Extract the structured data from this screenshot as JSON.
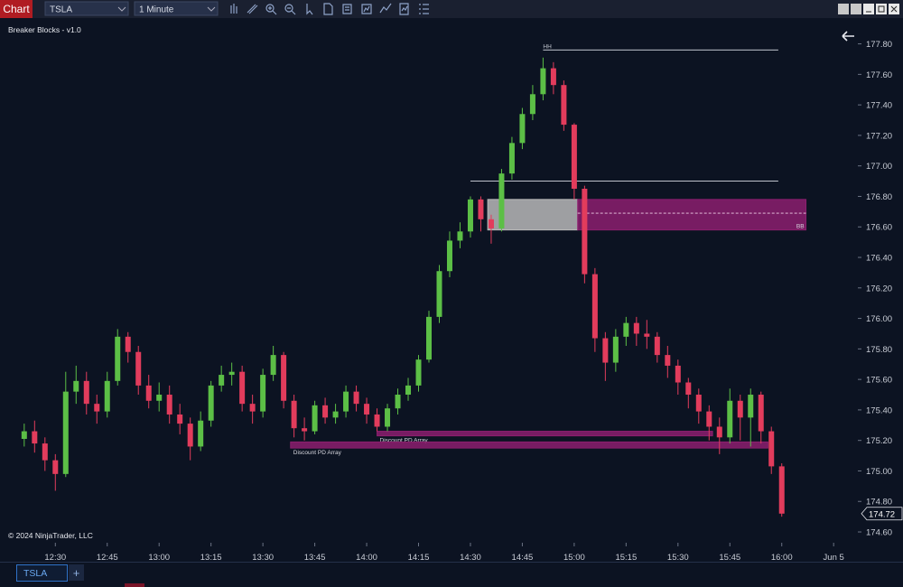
{
  "ui": {
    "tab": "Chart",
    "instrument": "TSLA",
    "interval": "1 Minute",
    "bottom_tab": "TSLA",
    "add_tab": "+"
  },
  "chart_data": {
    "type": "candlestick",
    "title": "Breaker Blocks - v1.0",
    "watermark": "© 2024 NinjaTrader, LLC",
    "up_color": "#5cbf46",
    "down_color": "#e23c5c",
    "xlim": [
      "12:14",
      "16:22"
    ],
    "ylim": [
      174.535,
      177.91
    ],
    "xticks": [
      "12:30",
      "12:45",
      "13:00",
      "13:15",
      "13:30",
      "13:45",
      "14:00",
      "14:15",
      "14:30",
      "14:45",
      "15:00",
      "15:15",
      "15:30",
      "15:45",
      "16:00",
      {
        "value": "16:15",
        "label": "Jun 5"
      }
    ],
    "yticks": [
      {
        "value": 174.6,
        "label": "174.60"
      },
      {
        "value": 174.8,
        "label": "174.80"
      },
      {
        "value": 175,
        "label": "175.00"
      },
      {
        "value": 175.2,
        "label": "175.20"
      },
      {
        "value": 175.4,
        "label": "175.40"
      },
      {
        "value": 175.6,
        "label": "175.60"
      },
      {
        "value": 175.8,
        "label": "175.80"
      },
      {
        "value": 176,
        "label": "176.00"
      },
      {
        "value": 176.2,
        "label": "176.20"
      },
      {
        "value": 176.4,
        "label": "176.40"
      },
      {
        "value": 176.6,
        "label": "176.60"
      },
      {
        "value": 176.8,
        "label": "176.80"
      },
      {
        "value": 177,
        "label": "177.00"
      },
      {
        "value": 177.2,
        "label": "177.20"
      },
      {
        "value": 177.4,
        "label": "177.40"
      },
      {
        "value": 177.6,
        "label": "177.60"
      },
      {
        "value": 177.8,
        "label": "177.80"
      }
    ],
    "grid": false,
    "x": [
      "12:21",
      "12:24",
      "12:27",
      "12:30",
      "12:33",
      "12:36",
      "12:39",
      "12:42",
      "12:45",
      "12:48",
      "12:51",
      "12:54",
      "12:57",
      "13:00",
      "13:03",
      "13:06",
      "13:09",
      "13:12",
      "13:15",
      "13:18",
      "13:21",
      "13:24",
      "13:27",
      "13:30",
      "13:33",
      "13:36",
      "13:39",
      "13:42",
      "13:45",
      "13:48",
      "13:51",
      "13:54",
      "13:57",
      "14:00",
      "14:03",
      "14:06",
      "14:09",
      "14:12",
      "14:15",
      "14:18",
      "14:21",
      "14:24",
      "14:27",
      "14:30",
      "14:33",
      "14:36",
      "14:39",
      "14:42",
      "14:45",
      "14:48",
      "14:51",
      "14:54",
      "14:57",
      "15:00",
      "15:03",
      "15:06",
      "15:09",
      "15:12",
      "15:15",
      "15:18",
      "15:21",
      "15:24",
      "15:27",
      "15:30",
      "15:33",
      "15:36",
      "15:39",
      "15:42",
      "15:45",
      "15:48",
      "15:51",
      "15:54",
      "15:57",
      "16:00"
    ],
    "open": [
      175.21,
      175.26,
      175.18,
      175.07,
      174.98,
      175.52,
      175.59,
      175.44,
      175.39,
      175.59,
      175.88,
      175.78,
      175.56,
      175.46,
      175.5,
      175.37,
      175.31,
      175.16,
      175.33,
      175.56,
      175.63,
      175.65,
      175.44,
      175.39,
      175.63,
      175.76,
      175.46,
      175.28,
      175.26,
      175.43,
      175.35,
      175.39,
      175.52,
      175.44,
      175.37,
      175.29,
      175.41,
      175.5,
      175.56,
      175.73,
      176.01,
      176.31,
      176.51,
      176.57,
      176.78,
      176.65,
      176.59,
      176.95,
      177.15,
      177.34,
      177.47,
      177.64,
      177.53,
      177.27,
      176.85,
      176.29,
      175.87,
      175.71,
      175.88,
      175.97,
      175.9,
      175.88,
      175.76,
      175.69,
      175.58,
      175.5,
      175.39,
      175.29,
      175.22,
      175.46,
      175.35,
      175.5,
      175.26,
      175.03
    ],
    "high": [
      175.31,
      175.33,
      175.22,
      175.11,
      175.65,
      175.69,
      175.65,
      175.5,
      175.65,
      175.93,
      175.91,
      175.82,
      175.63,
      175.58,
      175.56,
      175.44,
      175.35,
      175.39,
      175.59,
      175.69,
      175.71,
      175.69,
      175.5,
      175.67,
      175.82,
      175.78,
      175.5,
      175.35,
      175.46,
      175.48,
      175.44,
      175.56,
      175.56,
      175.48,
      175.41,
      175.44,
      175.54,
      175.61,
      175.76,
      176.05,
      176.35,
      176.57,
      176.63,
      176.8,
      176.8,
      176.68,
      176.98,
      177.19,
      177.38,
      177.53,
      177.71,
      177.68,
      177.56,
      177.28,
      176.87,
      176.33,
      175.91,
      175.93,
      176.01,
      176.01,
      175.99,
      175.91,
      175.82,
      175.73,
      175.61,
      175.54,
      175.43,
      175.35,
      175.54,
      175.5,
      175.54,
      175.52,
      175.29,
      175.05
    ],
    "low": [
      175.16,
      175.12,
      175.0,
      174.87,
      174.96,
      175.44,
      175.37,
      175.31,
      175.35,
      175.56,
      175.71,
      175.5,
      175.41,
      175.39,
      175.31,
      175.24,
      175.07,
      175.13,
      175.29,
      175.52,
      175.56,
      175.39,
      175.31,
      175.35,
      175.59,
      175.41,
      175.22,
      175.2,
      175.24,
      175.31,
      175.31,
      175.35,
      175.39,
      175.31,
      175.26,
      175.26,
      175.37,
      175.46,
      175.52,
      175.71,
      175.97,
      176.27,
      176.46,
      176.53,
      176.57,
      176.49,
      176.57,
      176.91,
      177.11,
      177.3,
      177.43,
      177.47,
      177.23,
      176.78,
      176.23,
      175.78,
      175.59,
      175.65,
      175.82,
      175.82,
      175.8,
      175.71,
      175.61,
      175.5,
      175.41,
      175.31,
      175.2,
      175.11,
      175.18,
      175.2,
      175.16,
      175.18,
      174.98,
      174.7
    ],
    "close": [
      175.26,
      175.18,
      175.07,
      174.98,
      175.52,
      175.59,
      175.44,
      175.39,
      175.59,
      175.88,
      175.78,
      175.56,
      175.46,
      175.5,
      175.37,
      175.31,
      175.16,
      175.33,
      175.56,
      175.63,
      175.65,
      175.44,
      175.39,
      175.63,
      175.76,
      175.46,
      175.28,
      175.26,
      175.43,
      175.35,
      175.39,
      175.52,
      175.44,
      175.37,
      175.29,
      175.41,
      175.5,
      175.56,
      175.73,
      176.01,
      176.31,
      176.51,
      176.57,
      176.78,
      176.65,
      176.59,
      176.95,
      177.15,
      177.34,
      177.47,
      177.64,
      177.53,
      177.27,
      176.85,
      176.29,
      175.87,
      175.71,
      175.88,
      175.97,
      175.9,
      175.88,
      175.76,
      175.69,
      175.58,
      175.5,
      175.39,
      175.29,
      175.22,
      175.46,
      175.35,
      175.5,
      175.26,
      175.03,
      174.72
    ],
    "levels": [
      {
        "label": "HH",
        "value": 177.76,
        "x": [
          "14:51",
          "15:59"
        ]
      },
      {
        "value": 176.9,
        "x": [
          "14:30",
          "15:59"
        ]
      }
    ],
    "zones": [
      {
        "x": [
          "14:35",
          "15:01"
        ],
        "y": [
          176.58,
          176.78
        ],
        "color": "#b9b9b9"
      },
      {
        "x": [
          "15:01",
          "16:07"
        ],
        "y": [
          176.58,
          176.78
        ],
        "color": "#8c1f6e",
        "mid": 176.69,
        "label": "BB",
        "label_corner": "right"
      },
      {
        "x": [
          "14:03",
          "15:40"
        ],
        "y": [
          175.23,
          175.26
        ],
        "color": "#8c1f6e",
        "label": "Discount PD Array",
        "label_corner": "below-left"
      },
      {
        "x": [
          "13:38",
          "15:56"
        ],
        "y": [
          175.15,
          175.19
        ],
        "color": "#8c1f6e",
        "label": "Discount PD Array",
        "label_corner": "below-left"
      }
    ]
  }
}
